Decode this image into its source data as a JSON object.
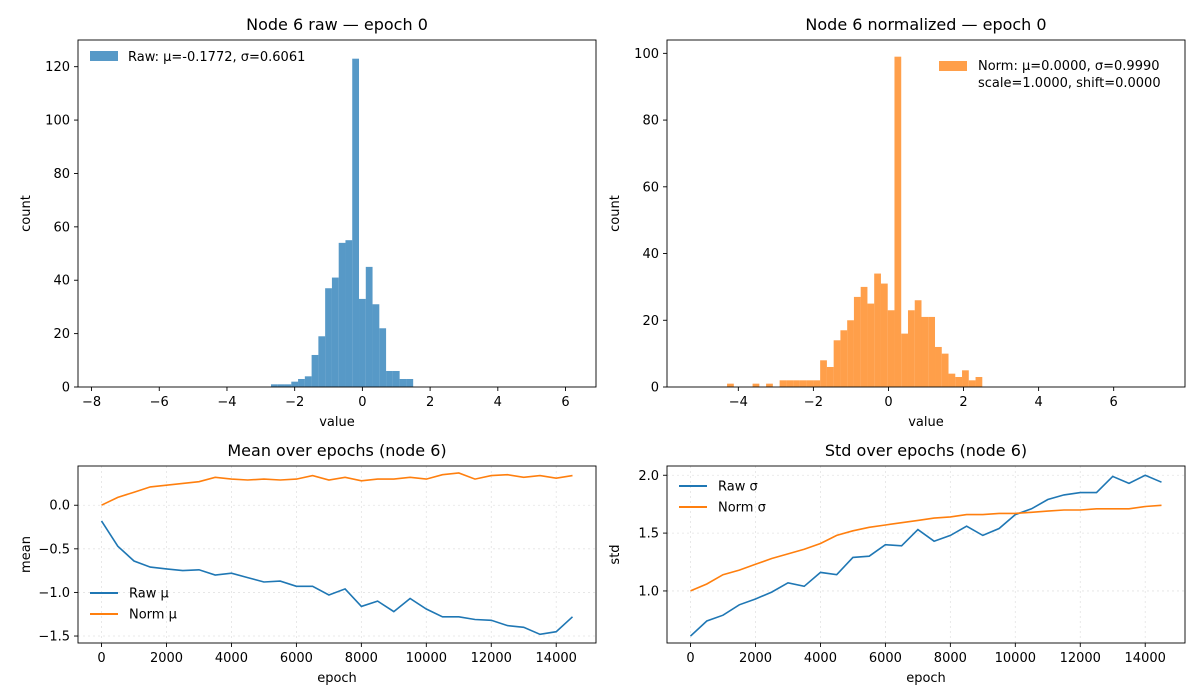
{
  "chart_data": [
    {
      "type": "bar",
      "subtype": "histogram",
      "title": "Node 6 raw — epoch 0",
      "xlabel": "value",
      "ylabel": "count",
      "xlim": [
        -8.4,
        6.9
      ],
      "ylim": [
        0,
        130
      ],
      "xticks": [
        -8,
        -6,
        -4,
        -2,
        0,
        2,
        4,
        6
      ],
      "yticks": [
        0,
        20,
        40,
        60,
        80,
        100,
        120
      ],
      "grid": false,
      "legend_position": "top-left",
      "color": "#1f77b4",
      "opacity": 0.75,
      "series": [
        {
          "name": "Raw: μ=-0.1772, σ=0.6061"
        }
      ],
      "bin_width": 0.2,
      "bins": [
        {
          "x": -2.7,
          "count": 1
        },
        {
          "x": -2.5,
          "count": 1
        },
        {
          "x": -2.3,
          "count": 1
        },
        {
          "x": -2.1,
          "count": 2
        },
        {
          "x": -1.9,
          "count": 3
        },
        {
          "x": -1.7,
          "count": 4
        },
        {
          "x": -1.5,
          "count": 12
        },
        {
          "x": -1.3,
          "count": 19
        },
        {
          "x": -1.1,
          "count": 37
        },
        {
          "x": -0.9,
          "count": 41
        },
        {
          "x": -0.7,
          "count": 54
        },
        {
          "x": -0.5,
          "count": 55
        },
        {
          "x": -0.3,
          "count": 123
        },
        {
          "x": -0.1,
          "count": 33
        },
        {
          "x": 0.1,
          "count": 45
        },
        {
          "x": 0.3,
          "count": 31
        },
        {
          "x": 0.5,
          "count": 22
        },
        {
          "x": 0.7,
          "count": 6
        },
        {
          "x": 0.9,
          "count": 6
        },
        {
          "x": 1.1,
          "count": 3
        },
        {
          "x": 1.3,
          "count": 3
        }
      ]
    },
    {
      "type": "bar",
      "subtype": "histogram",
      "title": "Node 6 normalized — epoch 0",
      "xlabel": "value",
      "ylabel": "count",
      "xlim": [
        -5.9,
        7.9
      ],
      "ylim": [
        0,
        104
      ],
      "xticks": [
        -4,
        -2,
        0,
        2,
        4,
        6
      ],
      "yticks": [
        0,
        20,
        40,
        60,
        80,
        100
      ],
      "grid": false,
      "legend_position": "top-right",
      "color": "#ff7f0e",
      "opacity": 0.75,
      "series": [
        {
          "name": "Norm: μ=0.0000, σ=0.9990"
        }
      ],
      "legend_line2": "scale=1.0000, shift=0.0000",
      "bin_width": 0.18,
      "bins": [
        {
          "x": -4.3,
          "count": 1
        },
        {
          "x": -3.62,
          "count": 1
        },
        {
          "x": -3.26,
          "count": 1
        },
        {
          "x": -2.9,
          "count": 2
        },
        {
          "x": -2.72,
          "count": 2
        },
        {
          "x": -2.54,
          "count": 2
        },
        {
          "x": -2.36,
          "count": 2
        },
        {
          "x": -2.18,
          "count": 2
        },
        {
          "x": -2.0,
          "count": 2
        },
        {
          "x": -1.82,
          "count": 8
        },
        {
          "x": -1.64,
          "count": 6
        },
        {
          "x": -1.46,
          "count": 14
        },
        {
          "x": -1.28,
          "count": 17
        },
        {
          "x": -1.1,
          "count": 20
        },
        {
          "x": -0.92,
          "count": 27
        },
        {
          "x": -0.74,
          "count": 30
        },
        {
          "x": -0.56,
          "count": 25
        },
        {
          "x": -0.38,
          "count": 34
        },
        {
          "x": -0.2,
          "count": 31
        },
        {
          "x": -0.02,
          "count": 23
        },
        {
          "x": 0.16,
          "count": 99
        },
        {
          "x": 0.34,
          "count": 16
        },
        {
          "x": 0.52,
          "count": 23
        },
        {
          "x": 0.7,
          "count": 26
        },
        {
          "x": 0.88,
          "count": 21
        },
        {
          "x": 1.06,
          "count": 21
        },
        {
          "x": 1.24,
          "count": 12
        },
        {
          "x": 1.42,
          "count": 10
        },
        {
          "x": 1.6,
          "count": 4
        },
        {
          "x": 1.78,
          "count": 3
        },
        {
          "x": 1.96,
          "count": 5
        },
        {
          "x": 2.14,
          "count": 2
        },
        {
          "x": 2.32,
          "count": 3
        }
      ]
    },
    {
      "type": "line",
      "title": "Mean over epochs (node 6)",
      "xlabel": "epoch",
      "ylabel": "mean",
      "xlim": [
        -725,
        15225
      ],
      "ylim": [
        -1.58,
        0.45
      ],
      "xticks": [
        0,
        2000,
        4000,
        6000,
        8000,
        10000,
        12000,
        14000
      ],
      "yticks": [
        -1.5,
        -1.0,
        -0.5,
        0.0
      ],
      "ytick_labels": [
        "−1.5",
        "−1.0",
        "−0.5",
        "0.0"
      ],
      "grid": true,
      "legend_position": "bottom-left",
      "x": [
        0,
        500,
        1000,
        1500,
        2000,
        2500,
        3000,
        3500,
        4000,
        4500,
        5000,
        5500,
        6000,
        6500,
        7000,
        7500,
        8000,
        8500,
        9000,
        9500,
        10000,
        10500,
        11000,
        11500,
        12000,
        12500,
        13000,
        13500,
        14000,
        14500
      ],
      "series": [
        {
          "name": "Raw μ",
          "color": "#1f77b4",
          "values": [
            -0.18,
            -0.47,
            -0.64,
            -0.71,
            -0.73,
            -0.75,
            -0.74,
            -0.8,
            -0.78,
            -0.83,
            -0.88,
            -0.87,
            -0.93,
            -0.93,
            -1.03,
            -0.96,
            -1.16,
            -1.1,
            -1.22,
            -1.07,
            -1.19,
            -1.28,
            -1.28,
            -1.31,
            -1.32,
            -1.38,
            -1.4,
            -1.48,
            -1.45,
            -1.28
          ]
        },
        {
          "name": "Norm μ",
          "color": "#ff7f0e",
          "values": [
            0.0,
            0.09,
            0.15,
            0.21,
            0.23,
            0.25,
            0.27,
            0.32,
            0.3,
            0.29,
            0.3,
            0.29,
            0.3,
            0.34,
            0.29,
            0.32,
            0.28,
            0.3,
            0.3,
            0.32,
            0.3,
            0.35,
            0.37,
            0.3,
            0.34,
            0.35,
            0.32,
            0.34,
            0.31,
            0.34
          ]
        }
      ]
    },
    {
      "type": "line",
      "title": "Std over epochs (node 6)",
      "xlabel": "epoch",
      "ylabel": "std",
      "xlim": [
        -725,
        15225
      ],
      "ylim": [
        0.55,
        2.08
      ],
      "xticks": [
        0,
        2000,
        4000,
        6000,
        8000,
        10000,
        12000,
        14000
      ],
      "yticks": [
        1.0,
        1.5,
        2.0
      ],
      "ytick_labels": [
        "1.0",
        "1.5",
        "2.0"
      ],
      "grid": true,
      "legend_position": "top-left",
      "x": [
        0,
        500,
        1000,
        1500,
        2000,
        2500,
        3000,
        3500,
        4000,
        4500,
        5000,
        5500,
        6000,
        6500,
        7000,
        7500,
        8000,
        8500,
        9000,
        9500,
        10000,
        10500,
        11000,
        11500,
        12000,
        12500,
        13000,
        13500,
        14000,
        14500
      ],
      "series": [
        {
          "name": "Raw σ",
          "color": "#1f77b4",
          "values": [
            0.61,
            0.74,
            0.79,
            0.88,
            0.93,
            0.99,
            1.07,
            1.04,
            1.16,
            1.14,
            1.29,
            1.3,
            1.4,
            1.39,
            1.53,
            1.43,
            1.48,
            1.56,
            1.48,
            1.54,
            1.66,
            1.71,
            1.79,
            1.83,
            1.85,
            1.85,
            1.99,
            1.93,
            2.0,
            1.94
          ]
        },
        {
          "name": "Norm σ",
          "color": "#ff7f0e",
          "values": [
            1.0,
            1.06,
            1.14,
            1.18,
            1.23,
            1.28,
            1.32,
            1.36,
            1.41,
            1.48,
            1.52,
            1.55,
            1.57,
            1.59,
            1.61,
            1.63,
            1.64,
            1.66,
            1.66,
            1.67,
            1.67,
            1.68,
            1.69,
            1.7,
            1.7,
            1.71,
            1.71,
            1.71,
            1.73,
            1.74
          ]
        }
      ]
    }
  ]
}
